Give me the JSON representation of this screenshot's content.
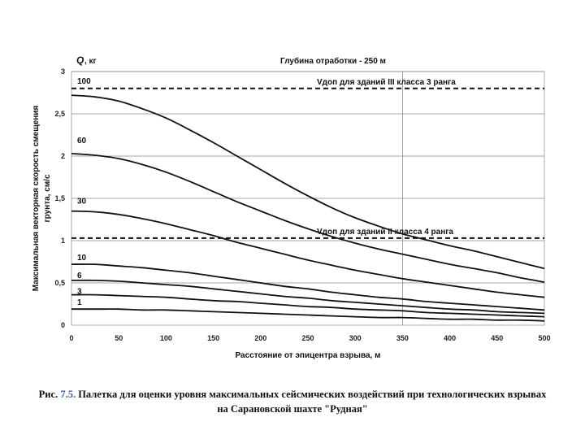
{
  "chart_data": {
    "type": "line",
    "title": "Глубина отработки - 250 м",
    "ylabel_line1": "Максимальная векторная скорость смещения",
    "ylabel_line2": "грунта, см/с",
    "xlabel": "Расстояние от эпицентра взрыва, м",
    "q_label": "Q",
    "q_unit": ", кг",
    "xlim": [
      0,
      500
    ],
    "ylim": [
      0,
      3
    ],
    "x_ticks": [
      0,
      50,
      100,
      150,
      200,
      250,
      300,
      350,
      400,
      450,
      500
    ],
    "y_ticks": [
      0,
      0.5,
      1,
      1.5,
      2,
      2.5,
      3
    ],
    "y_tick_labels": [
      "0",
      "0,5",
      "1",
      "1,5",
      "2",
      "2,5",
      "3"
    ],
    "y_gridlines": [
      0.5,
      1,
      1.5,
      2,
      2.5,
      3
    ],
    "x_gridlines": [
      350
    ],
    "grid": true,
    "x": [
      0,
      25,
      50,
      75,
      100,
      125,
      150,
      175,
      200,
      225,
      250,
      275,
      300,
      325,
      350,
      375,
      400,
      425,
      450,
      475,
      500
    ],
    "series": [
      {
        "name": "100",
        "values": [
          2.72,
          2.7,
          2.65,
          2.56,
          2.45,
          2.31,
          2.16,
          2.0,
          1.84,
          1.68,
          1.53,
          1.39,
          1.27,
          1.17,
          1.08,
          1.01,
          0.94,
          0.88,
          0.81,
          0.74,
          0.67
        ]
      },
      {
        "name": "60",
        "values": [
          2.03,
          2.01,
          1.97,
          1.9,
          1.81,
          1.7,
          1.58,
          1.46,
          1.35,
          1.24,
          1.14,
          1.05,
          0.97,
          0.9,
          0.84,
          0.78,
          0.72,
          0.67,
          0.62,
          0.56,
          0.51
        ]
      },
      {
        "name": "30",
        "values": [
          1.35,
          1.34,
          1.31,
          1.26,
          1.2,
          1.13,
          1.06,
          0.98,
          0.91,
          0.84,
          0.77,
          0.71,
          0.65,
          0.6,
          0.55,
          0.51,
          0.47,
          0.43,
          0.39,
          0.36,
          0.33
        ]
      },
      {
        "name": "10",
        "values": [
          0.72,
          0.72,
          0.7,
          0.68,
          0.65,
          0.62,
          0.58,
          0.54,
          0.5,
          0.46,
          0.43,
          0.39,
          0.36,
          0.33,
          0.31,
          0.28,
          0.26,
          0.24,
          0.22,
          0.2,
          0.18
        ]
      },
      {
        "name": "6",
        "values": [
          0.53,
          0.53,
          0.52,
          0.5,
          0.48,
          0.46,
          0.43,
          0.4,
          0.37,
          0.34,
          0.32,
          0.29,
          0.27,
          0.25,
          0.23,
          0.21,
          0.19,
          0.18,
          0.16,
          0.15,
          0.14
        ]
      },
      {
        "name": "3",
        "values": [
          0.36,
          0.36,
          0.35,
          0.34,
          0.33,
          0.31,
          0.29,
          0.28,
          0.26,
          0.24,
          0.22,
          0.21,
          0.19,
          0.18,
          0.17,
          0.15,
          0.14,
          0.13,
          0.12,
          0.11,
          0.1
        ]
      },
      {
        "name": "1",
        "values": [
          0.19,
          0.19,
          0.19,
          0.18,
          0.18,
          0.17,
          0.16,
          0.15,
          0.14,
          0.13,
          0.12,
          0.11,
          0.1,
          0.09,
          0.09,
          0.08,
          0.07,
          0.07,
          0.06,
          0.06,
          0.05
        ]
      }
    ],
    "thresholds": [
      {
        "value": 2.8,
        "label": "Vдоп для зданий III класса 3 ранга"
      },
      {
        "value": 1.03,
        "label": "Vдоп для зданий II класса 4 ранга"
      }
    ]
  },
  "caption": {
    "prefix": "Рис. ",
    "number": "7.5.",
    "line1": " Палетка для оценки уровня максимальных сейсмических воздействий при технологических взрывах",
    "line2": "на Сарановской шахте \"Рудная\""
  }
}
